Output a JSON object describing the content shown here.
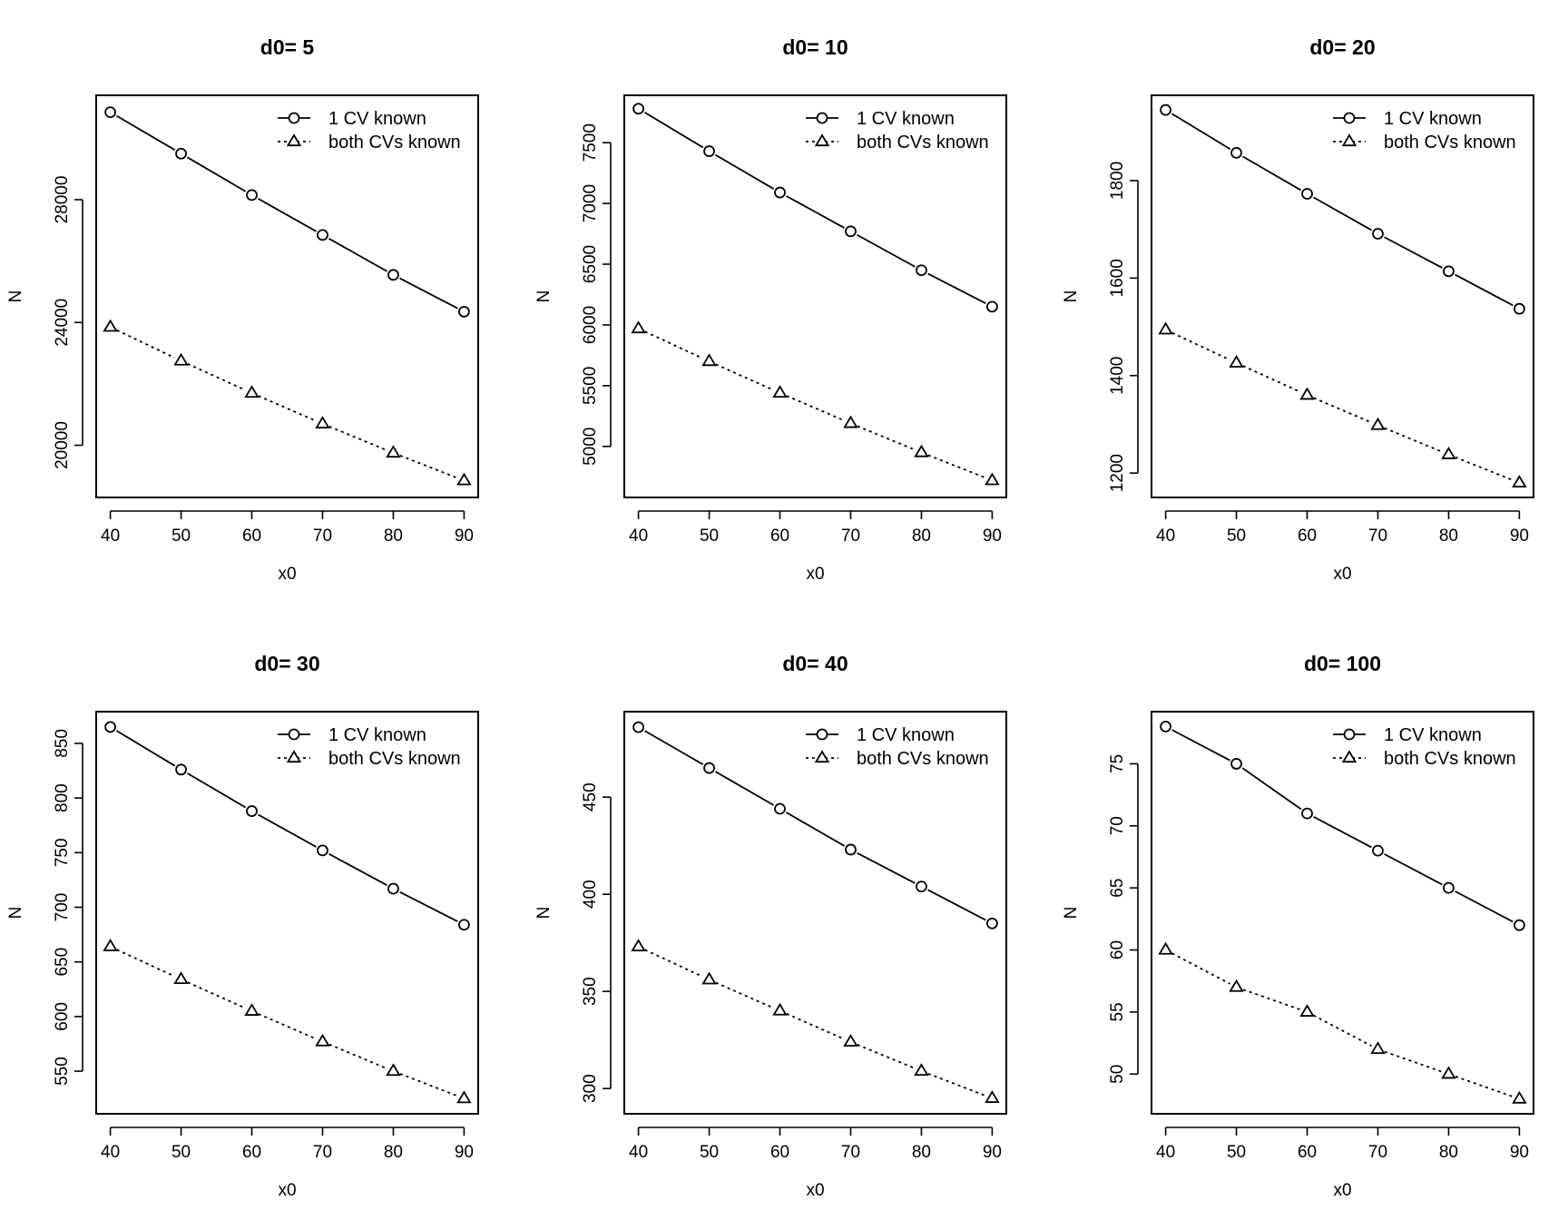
{
  "chart_data": [
    {
      "type": "line",
      "title": "d0= 5",
      "xlabel": "x0",
      "ylabel": "N",
      "x": [
        40,
        50,
        60,
        70,
        80,
        90
      ],
      "xlim": [
        38,
        92
      ],
      "ylim": [
        18300,
        31400
      ],
      "xticks": [
        40,
        50,
        60,
        70,
        80,
        90
      ],
      "yticks": [
        20000,
        24000,
        28000
      ],
      "legend_position": "top-right",
      "series": [
        {
          "name": "1 CV known",
          "line": "solid",
          "marker": "circle",
          "values": [
            30850,
            29500,
            28150,
            26850,
            25550,
            24350
          ]
        },
        {
          "name": "both CVs known",
          "line": "dotted",
          "marker": "triangle",
          "values": [
            23850,
            22750,
            21700,
            20700,
            19750,
            18850
          ]
        }
      ]
    },
    {
      "type": "line",
      "title": "d0= 10",
      "xlabel": "x0",
      "ylabel": "N",
      "x": [
        40,
        50,
        60,
        70,
        80,
        90
      ],
      "xlim": [
        38,
        92
      ],
      "ylim": [
        4580,
        7890
      ],
      "xticks": [
        40,
        50,
        60,
        70,
        80,
        90
      ],
      "yticks": [
        5000,
        5500,
        6000,
        6500,
        7000,
        7500
      ],
      "legend_position": "top-right",
      "series": [
        {
          "name": "1 CV known",
          "line": "solid",
          "marker": "circle",
          "values": [
            7780,
            7430,
            7090,
            6770,
            6450,
            6150
          ]
        },
        {
          "name": "both CVs known",
          "line": "dotted",
          "marker": "triangle",
          "values": [
            5970,
            5700,
            5440,
            5190,
            4950,
            4720
          ]
        }
      ]
    },
    {
      "type": "line",
      "title": "d0= 20",
      "xlabel": "x0",
      "ylabel": "N",
      "x": [
        40,
        50,
        60,
        70,
        80,
        90
      ],
      "xlim": [
        38,
        92
      ],
      "ylim": [
        1150,
        1975
      ],
      "xticks": [
        40,
        50,
        60,
        70,
        80,
        90
      ],
      "yticks": [
        1200,
        1400,
        1600,
        1800
      ],
      "legend_position": "top-right",
      "series": [
        {
          "name": "1 CV known",
          "line": "solid",
          "marker": "circle",
          "values": [
            1945,
            1857,
            1773,
            1691,
            1614,
            1537
          ]
        },
        {
          "name": "both CVs known",
          "line": "dotted",
          "marker": "triangle",
          "values": [
            1494,
            1426,
            1360,
            1298,
            1238,
            1180
          ]
        }
      ]
    },
    {
      "type": "line",
      "title": "d0= 30",
      "xlabel": "x0",
      "ylabel": "N",
      "x": [
        40,
        50,
        60,
        70,
        80,
        90
      ],
      "xlim": [
        38,
        92
      ],
      "ylim": [
        511,
        879
      ],
      "xticks": [
        40,
        50,
        60,
        70,
        80,
        90
      ],
      "yticks": [
        550,
        600,
        650,
        700,
        750,
        800,
        850
      ],
      "legend_position": "top-right",
      "series": [
        {
          "name": "1 CV known",
          "line": "solid",
          "marker": "circle",
          "values": [
            865,
            826,
            788,
            752,
            717,
            684
          ]
        },
        {
          "name": "both CVs known",
          "line": "dotted",
          "marker": "triangle",
          "values": [
            664,
            634,
            605,
            577,
            550,
            525
          ]
        }
      ]
    },
    {
      "type": "line",
      "title": "d0= 40",
      "xlabel": "x0",
      "ylabel": "N",
      "x": [
        40,
        50,
        60,
        70,
        80,
        90
      ],
      "xlim": [
        38,
        92
      ],
      "ylim": [
        287,
        494
      ],
      "xticks": [
        40,
        50,
        60,
        70,
        80,
        90
      ],
      "yticks": [
        300,
        350,
        400,
        450
      ],
      "legend_position": "top-right",
      "series": [
        {
          "name": "1 CV known",
          "line": "solid",
          "marker": "circle",
          "values": [
            486,
            465,
            444,
            423,
            404,
            385
          ]
        },
        {
          "name": "both CVs known",
          "line": "dotted",
          "marker": "triangle",
          "values": [
            373,
            356,
            340,
            324,
            309,
            295
          ]
        }
      ]
    },
    {
      "type": "line",
      "title": "d0= 100",
      "xlabel": "x0",
      "ylabel": "N",
      "x": [
        40,
        50,
        60,
        70,
        80,
        90
      ],
      "xlim": [
        38,
        92
      ],
      "ylim": [
        46.8,
        79.2
      ],
      "xticks": [
        40,
        50,
        60,
        70,
        80,
        90
      ],
      "yticks": [
        50,
        55,
        60,
        65,
        70,
        75
      ],
      "legend_position": "top-right",
      "series": [
        {
          "name": "1 CV known",
          "line": "solid",
          "marker": "circle",
          "values": [
            78,
            75,
            71,
            68,
            65,
            62
          ]
        },
        {
          "name": "both CVs known",
          "line": "dotted",
          "marker": "triangle",
          "values": [
            60,
            57,
            55,
            52,
            50,
            48
          ]
        }
      ]
    }
  ]
}
